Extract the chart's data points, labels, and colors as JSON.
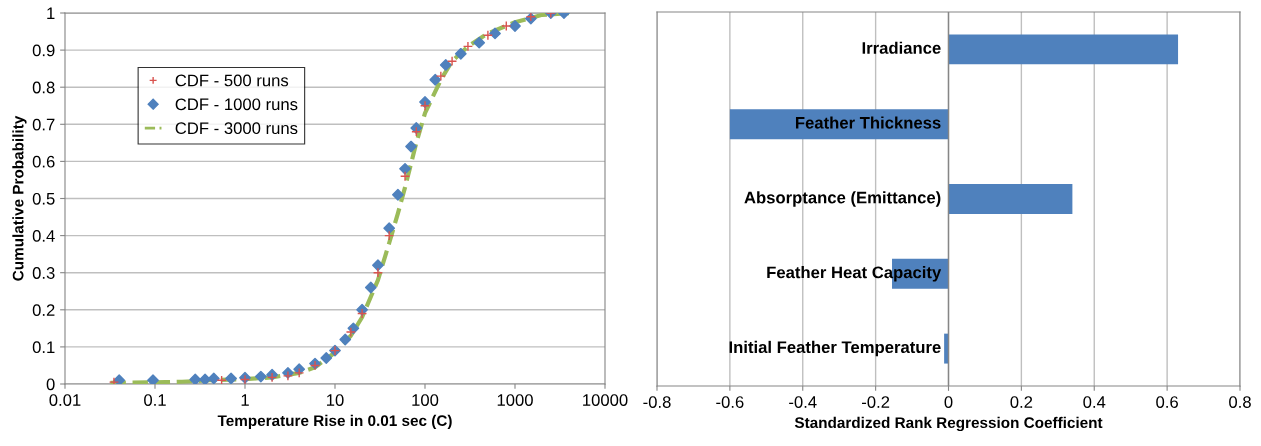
{
  "chart_data": [
    {
      "type": "scatter",
      "xlabel": "Temperature Rise in 0.01 sec (C)",
      "ylabel": "Cumulative Probability",
      "log": "x",
      "xlim": [
        0.01,
        10000
      ],
      "xticks": [
        0.01,
        0.1,
        1,
        10,
        100,
        1000,
        10000
      ],
      "ylim": [
        0,
        1
      ],
      "yticks": [
        0,
        0.1,
        0.2,
        0.3,
        0.4,
        0.5,
        0.6,
        0.7,
        0.8,
        0.9,
        1
      ],
      "grid": "y",
      "legend": "left",
      "series": [
        {
          "name": "CDF - 500 runs",
          "color": "#d9534f",
          "marker": "cross",
          "x": [
            0.035,
            0.55,
            1,
            2,
            3,
            4,
            6,
            10,
            15,
            20,
            30,
            40,
            60,
            80,
            100,
            150,
            200,
            300,
            500,
            800,
            1500,
            2500
          ],
          "values": [
            0.005,
            0.01,
            0.012,
            0.018,
            0.022,
            0.03,
            0.05,
            0.09,
            0.14,
            0.19,
            0.3,
            0.4,
            0.56,
            0.68,
            0.75,
            0.83,
            0.87,
            0.91,
            0.94,
            0.965,
            0.99,
            1.0
          ]
        },
        {
          "name": "CDF - 1000 runs",
          "color": "#4f81bd",
          "marker": "diamond",
          "x": [
            0.04,
            0.095,
            0.28,
            0.36,
            0.45,
            0.7,
            1,
            1.5,
            2,
            3,
            4,
            6,
            8,
            10,
            13,
            16,
            20,
            25,
            30,
            40,
            50,
            60,
            70,
            80,
            100,
            130,
            170,
            250,
            400,
            600,
            1000,
            1500,
            2500,
            3500
          ],
          "values": [
            0.01,
            0.01,
            0.012,
            0.012,
            0.015,
            0.015,
            0.017,
            0.02,
            0.025,
            0.03,
            0.04,
            0.055,
            0.07,
            0.09,
            0.12,
            0.15,
            0.2,
            0.26,
            0.32,
            0.42,
            0.51,
            0.58,
            0.64,
            0.69,
            0.76,
            0.82,
            0.86,
            0.89,
            0.92,
            0.945,
            0.965,
            0.985,
            1.0,
            1.0
          ]
        },
        {
          "name": "CDF - 3000 runs",
          "color": "#9bbb59",
          "type": "line",
          "line_style": "dashed",
          "marker": "none",
          "x": [
            0.032,
            0.13,
            0.2,
            0.4,
            1,
            2,
            4,
            6,
            10,
            15,
            20,
            30,
            40,
            50,
            60,
            80,
            100,
            150,
            200,
            300,
            500,
            1000,
            2000,
            4500
          ],
          "values": [
            0.003,
            0.005,
            0.006,
            0.01,
            0.013,
            0.018,
            0.03,
            0.045,
            0.085,
            0.13,
            0.18,
            0.28,
            0.38,
            0.46,
            0.53,
            0.65,
            0.73,
            0.82,
            0.87,
            0.91,
            0.945,
            0.975,
            0.995,
            1.0
          ]
        }
      ]
    },
    {
      "type": "bar",
      "orientation": "horizontal",
      "xlabel": "Standardized Rank Regression Coefficient",
      "categories": [
        "Irradiance",
        "Feather Thickness",
        "Absorptance (Emittance)",
        "Feather Heat Capacity",
        "Initial Feather Temperature"
      ],
      "values": [
        0.63,
        -0.6,
        0.34,
        -0.155,
        -0.012
      ],
      "color": "#4f81bd",
      "xlim": [
        -0.8,
        0.8
      ],
      "xticks": [
        -0.8,
        -0.6,
        -0.4,
        -0.2,
        0,
        0.2,
        0.4,
        0.6,
        0.8
      ],
      "grid": "x"
    }
  ]
}
